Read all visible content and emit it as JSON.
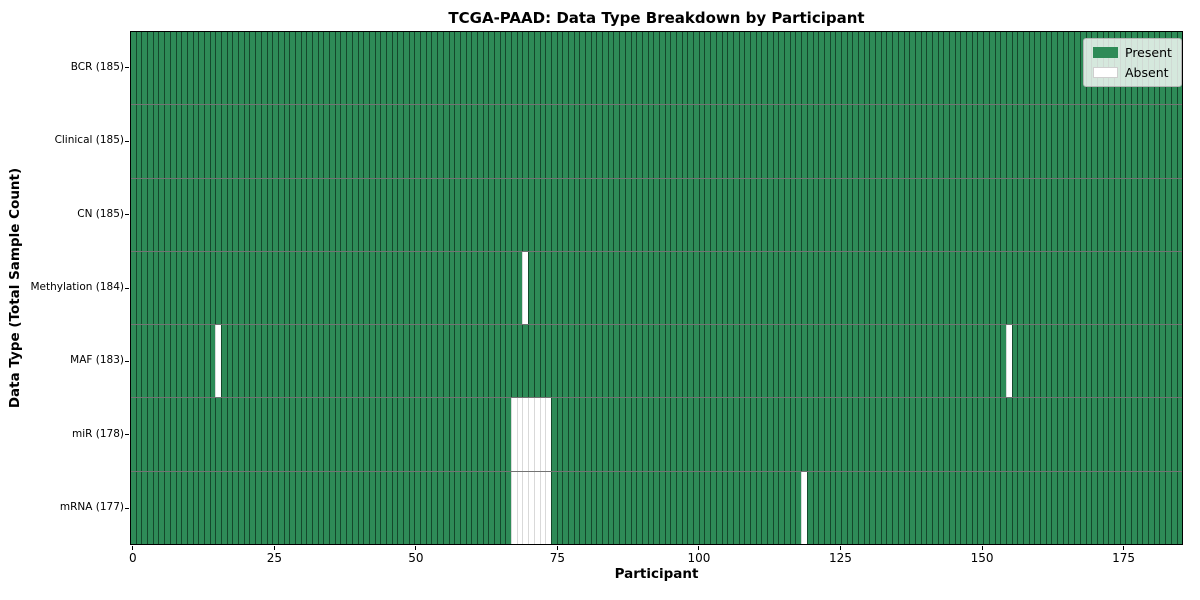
{
  "chart_data": {
    "type": "heatmap",
    "title": "TCGA-PAAD: Data Type Breakdown by Participant",
    "xlabel": "Participant",
    "ylabel": "Data Type (Total Sample Count)",
    "n_participants": 185,
    "x_ticks": [
      0,
      25,
      50,
      75,
      100,
      125,
      150,
      175
    ],
    "x_range": [
      -0.5,
      185.5
    ],
    "grid": false,
    "legend_position": "upper right",
    "legend": [
      {
        "label": "Present",
        "color": "#2e8b57"
      },
      {
        "label": "Absent",
        "color": "#ffffff"
      }
    ],
    "rows": [
      {
        "label": "BCR (185)",
        "data_type": "BCR",
        "total_samples": 185,
        "absent_participants": []
      },
      {
        "label": "Clinical (185)",
        "data_type": "Clinical",
        "total_samples": 185,
        "absent_participants": []
      },
      {
        "label": "CN (185)",
        "data_type": "CN",
        "total_samples": 185,
        "absent_participants": []
      },
      {
        "label": "Methylation (184)",
        "data_type": "Methylation",
        "total_samples": 184,
        "absent_participants": [
          69
        ]
      },
      {
        "label": "MAF (183)",
        "data_type": "MAF",
        "total_samples": 183,
        "absent_participants": [
          15,
          154
        ]
      },
      {
        "label": "miR (178)",
        "data_type": "miR",
        "total_samples": 178,
        "absent_participants": [
          67,
          68,
          69,
          70,
          71,
          72,
          73
        ]
      },
      {
        "label": "mRNA (177)",
        "data_type": "mRNA",
        "total_samples": 177,
        "absent_participants": [
          67,
          68,
          69,
          70,
          71,
          72,
          73,
          118
        ]
      }
    ],
    "colors": {
      "present": "#2e8b57",
      "absent": "#ffffff",
      "cell_edge_on_green": "#1c4531",
      "cell_edge_on_white": "#c8c8c8",
      "row_separator": "#1a1a1a",
      "spine": "#000000"
    }
  }
}
